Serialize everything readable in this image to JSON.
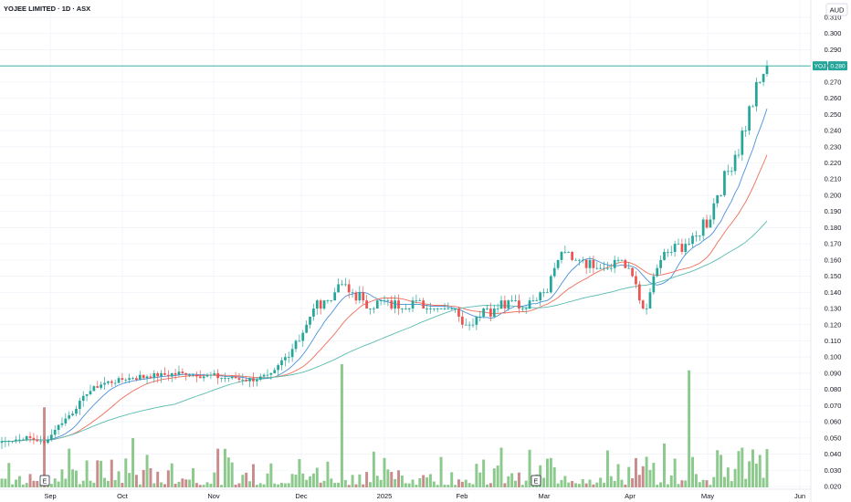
{
  "header": {
    "title": "YOJEE LIMITED · 1D · ASX",
    "currency": "AUD"
  },
  "price_badge": {
    "symbol": "YOJ",
    "value": "0.280",
    "color": "#26a69a"
  },
  "colors": {
    "up": "#26a69a",
    "down": "#ef5350",
    "vol_up": "#8cc98c",
    "vol_down": "#c98c8c",
    "ma_fast": "#4a90d9",
    "ma_mid": "#f06e5a",
    "ma_slow": "#5bbcb0"
  },
  "event_markers": [
    "E",
    "E"
  ],
  "chart_data": {
    "type": "candlestick",
    "ylim": [
      0.02,
      0.31
    ],
    "y_ticks": [
      "0.310",
      "0.300",
      "0.290",
      "0.280",
      "0.270",
      "0.260",
      "0.250",
      "0.240",
      "0.230",
      "0.220",
      "0.210",
      "0.200",
      "0.190",
      "0.180",
      "0.170",
      "0.160",
      "0.150",
      "0.140",
      "0.130",
      "0.120",
      "0.110",
      "0.100",
      "0.090",
      "0.080",
      "0.070",
      "0.060",
      "0.050",
      "0.040",
      "0.030",
      "0.020"
    ],
    "x_ticks": [
      "Sep",
      "Oct",
      "Nov",
      "Dec",
      "2025",
      "Feb",
      "Mar",
      "Apr",
      "May",
      "Jun"
    ],
    "last_price": 0.28,
    "keypoints": [
      [
        0,
        0.048
      ],
      [
        8,
        0.05
      ],
      [
        12,
        0.047
      ],
      [
        16,
        0.058
      ],
      [
        20,
        0.066
      ],
      [
        24,
        0.078
      ],
      [
        28,
        0.083
      ],
      [
        36,
        0.087
      ],
      [
        44,
        0.089
      ],
      [
        52,
        0.09
      ],
      [
        60,
        0.088
      ],
      [
        70,
        0.086
      ],
      [
        76,
        0.088
      ],
      [
        80,
        0.1
      ],
      [
        84,
        0.113
      ],
      [
        88,
        0.13
      ],
      [
        92,
        0.135
      ],
      [
        96,
        0.145
      ],
      [
        100,
        0.138
      ],
      [
        104,
        0.132
      ],
      [
        112,
        0.134
      ],
      [
        120,
        0.132
      ],
      [
        128,
        0.13
      ],
      [
        132,
        0.118
      ],
      [
        136,
        0.129
      ],
      [
        140,
        0.131
      ],
      [
        148,
        0.133
      ],
      [
        154,
        0.145
      ],
      [
        158,
        0.165
      ],
      [
        162,
        0.16
      ],
      [
        166,
        0.155
      ],
      [
        170,
        0.152
      ],
      [
        174,
        0.16
      ],
      [
        178,
        0.15
      ],
      [
        180,
        0.135
      ],
      [
        182,
        0.13
      ],
      [
        184,
        0.15
      ],
      [
        188,
        0.165
      ],
      [
        192,
        0.17
      ],
      [
        196,
        0.175
      ],
      [
        200,
        0.188
      ],
      [
        204,
        0.21
      ],
      [
        208,
        0.23
      ],
      [
        212,
        0.258
      ],
      [
        215,
        0.275
      ],
      [
        216,
        0.28
      ]
    ],
    "n_candles": 217,
    "volume_spikes": [
      {
        "index": 12,
        "level": 0.65
      },
      {
        "index": 37,
        "level": 0.4
      },
      {
        "index": 96,
        "level": 1.0
      },
      {
        "index": 194,
        "level": 0.95
      }
    ]
  }
}
